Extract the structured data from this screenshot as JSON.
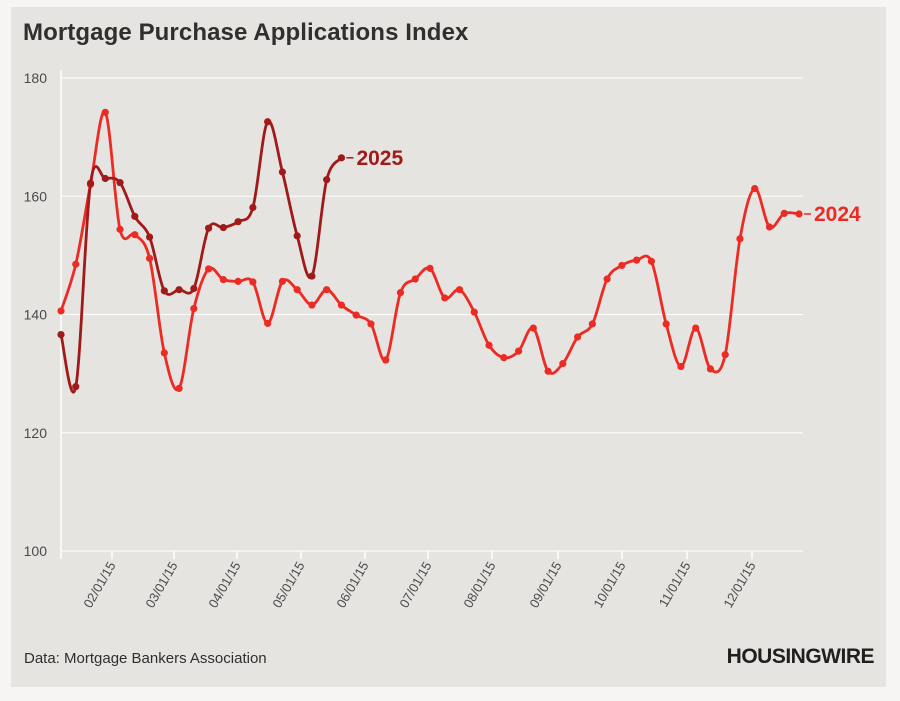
{
  "title": "Mortgage Purchase Applications Index",
  "source": "Data: Mortgage Bankers Association",
  "brand": "HOUSINGWIRE",
  "colors": {
    "background": "#e6e4e1",
    "grid": "#ffffff",
    "series_2024": "#ec2b24",
    "series_2025": "#a11a1a",
    "text": "#2f2f2f"
  },
  "chart_data": {
    "type": "line",
    "title": "Mortgage Purchase Applications Index",
    "xlabel": "",
    "ylabel": "",
    "ylim": [
      100,
      180
    ],
    "yticks": [
      100,
      120,
      140,
      160,
      180
    ],
    "xtick_labels": [
      "02/01/15",
      "03/01/15",
      "04/01/15",
      "05/01/15",
      "06/01/15",
      "07/01/15",
      "08/01/15",
      "09/01/15",
      "10/01/15",
      "11/01/15",
      "12/01/15"
    ],
    "grid": true,
    "legend": "labels at line ends",
    "series": [
      {
        "name": "2024",
        "color": "#ec2b24",
        "values": [
          140.6,
          148.5,
          162.0,
          174.2,
          154.4,
          153.5,
          149.5,
          133.5,
          127.5,
          141.0,
          147.7,
          145.9,
          145.6,
          145.5,
          138.5,
          145.6,
          144.2,
          141.6,
          144.2,
          141.6,
          139.9,
          138.4,
          132.3,
          143.7,
          146.0,
          147.8,
          142.8,
          144.2,
          140.4,
          134.8,
          132.7,
          133.8,
          137.7,
          130.4,
          131.7,
          136.2,
          138.4,
          146.0,
          148.3,
          149.2,
          149.0,
          138.4,
          131.2,
          137.7,
          130.8,
          133.2,
          152.8,
          161.3,
          154.8,
          157.1,
          157.0
        ]
      },
      {
        "name": "2025",
        "color": "#a11a1a",
        "values": [
          136.6,
          127.8,
          162.2,
          163.0,
          162.3,
          156.6,
          153.1,
          144.0,
          144.2,
          144.4,
          154.6,
          154.7,
          155.7,
          158.1,
          172.6,
          164.1,
          153.3,
          146.5,
          162.8,
          166.5
        ]
      }
    ]
  }
}
